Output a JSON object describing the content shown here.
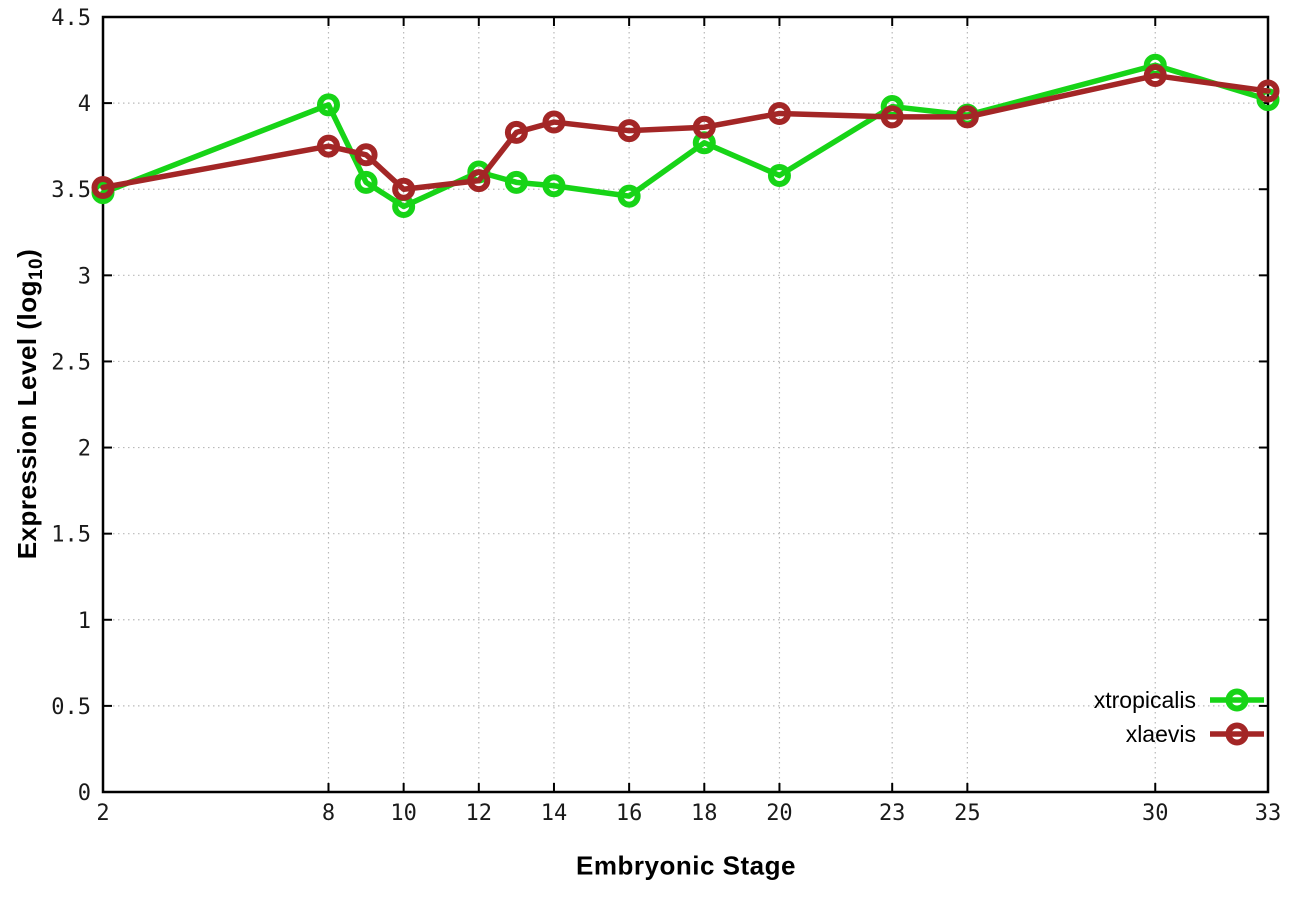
{
  "chart_data": {
    "type": "line",
    "title": "",
    "xlabel": "Embryonic Stage",
    "ylabel": "Expression Level (log10)",
    "ylabel_parts": {
      "base": "Expression Level (log",
      "sub": "10",
      "close": ")"
    },
    "xlim": [
      2,
      33
    ],
    "ylim": [
      0,
      4.5
    ],
    "grid": true,
    "legend_position": "bottom-right inside",
    "marker": "open-circle",
    "x": [
      2,
      8,
      9,
      10,
      12,
      13,
      14,
      16,
      18,
      20,
      23,
      25,
      30,
      33
    ],
    "series": [
      {
        "name": "xtropicalis",
        "color": "#17d417",
        "values": [
          3.48,
          3.99,
          3.54,
          3.4,
          3.6,
          3.54,
          3.52,
          3.46,
          3.77,
          3.58,
          3.98,
          3.93,
          4.22,
          4.02
        ]
      },
      {
        "name": "xlaevis",
        "color": "#a32626",
        "values": [
          3.51,
          3.75,
          3.7,
          3.5,
          3.55,
          3.83,
          3.89,
          3.84,
          3.86,
          3.94,
          3.92,
          3.92,
          4.16,
          4.07
        ]
      }
    ],
    "xticks": [
      2,
      8,
      10,
      12,
      14,
      16,
      18,
      20,
      23,
      25,
      30,
      33
    ],
    "xtick_labels": [
      "2",
      "8",
      "10",
      "12",
      "14",
      "16",
      "18",
      "20",
      "23",
      "25",
      "30",
      "33"
    ],
    "yticks": [
      0,
      0.5,
      1,
      1.5,
      2,
      2.5,
      3,
      3.5,
      4,
      4.5
    ],
    "ytick_labels": [
      "0",
      "0.5",
      "1",
      "1.5",
      "2",
      "2.5",
      "3",
      "3.5",
      "4",
      "4.5"
    ],
    "grid_color": "#b9b9b9",
    "axis_color": "#000000"
  }
}
